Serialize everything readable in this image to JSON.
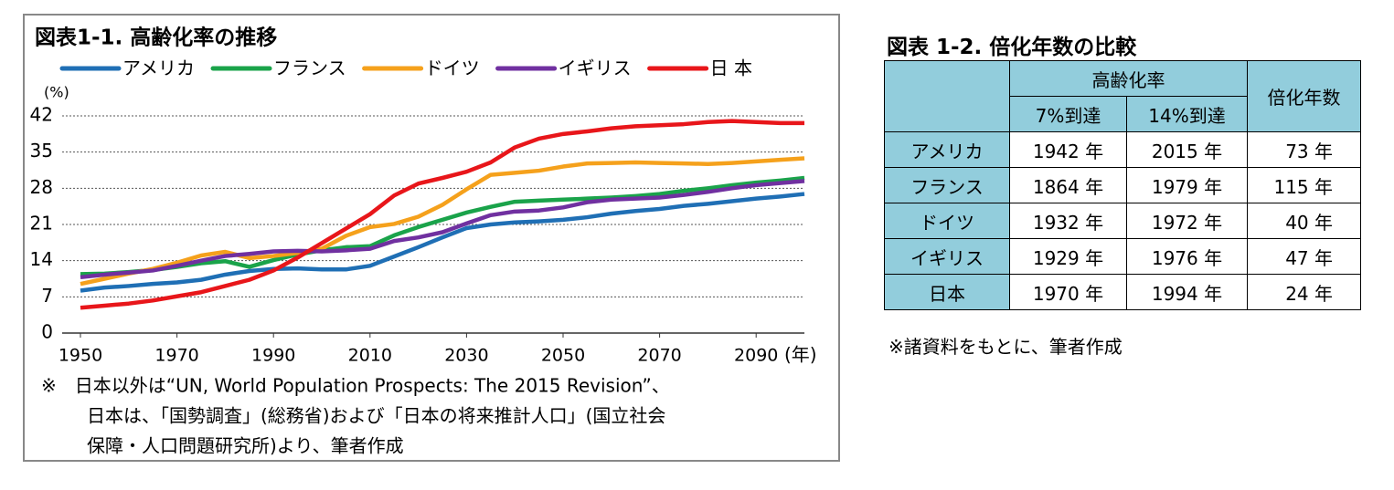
{
  "chart_data": {
    "type": "line",
    "title": "図表1-1. 高齢化率の推移",
    "y_label": "(%)",
    "x_label": "(年)",
    "x": [
      1950,
      1955,
      1960,
      1965,
      1970,
      1975,
      1980,
      1985,
      1990,
      1995,
      2000,
      2005,
      2010,
      2015,
      2020,
      2025,
      2030,
      2035,
      2040,
      2045,
      2050,
      2055,
      2060,
      2065,
      2070,
      2075,
      2080,
      2085,
      2090,
      2095,
      2100
    ],
    "series": [
      {
        "name": "アメリカ",
        "color": "#1f6fb5",
        "values": [
          8.2,
          8.8,
          9.1,
          9.5,
          9.8,
          10.3,
          11.3,
          12.0,
          12.4,
          12.5,
          12.3,
          12.3,
          13.0,
          14.8,
          16.6,
          18.5,
          20.3,
          21.0,
          21.4,
          21.6,
          21.9,
          22.4,
          23.1,
          23.6,
          24.0,
          24.6,
          25.0,
          25.5,
          26.0,
          26.4,
          26.9
        ]
      },
      {
        "name": "フランス",
        "color": "#1aa34a",
        "values": [
          11.4,
          11.5,
          11.8,
          12.2,
          12.8,
          13.5,
          13.9,
          12.8,
          14.1,
          15.2,
          16.0,
          16.6,
          16.8,
          18.9,
          20.5,
          21.9,
          23.3,
          24.4,
          25.4,
          25.6,
          25.8,
          26.0,
          26.2,
          26.5,
          26.9,
          27.5,
          28.0,
          28.6,
          29.1,
          29.5,
          30.0
        ]
      },
      {
        "name": "ドイツ",
        "color": "#f5a11c",
        "values": [
          9.5,
          10.5,
          11.5,
          12.4,
          13.6,
          15.0,
          15.7,
          14.5,
          14.9,
          15.5,
          16.3,
          18.8,
          20.5,
          21.1,
          22.5,
          24.8,
          27.8,
          30.6,
          31.0,
          31.4,
          32.2,
          32.8,
          32.9,
          33.0,
          32.9,
          32.8,
          32.7,
          32.9,
          33.2,
          33.5,
          33.8
        ]
      },
      {
        "name": "イギリス",
        "color": "#7030a0",
        "values": [
          10.8,
          11.3,
          11.7,
          12.1,
          13.0,
          14.0,
          14.9,
          15.3,
          15.8,
          15.9,
          15.8,
          16.0,
          16.3,
          17.8,
          18.5,
          19.5,
          21.2,
          22.8,
          23.5,
          23.7,
          24.3,
          25.3,
          25.8,
          26.0,
          26.2,
          26.7,
          27.3,
          28.0,
          28.6,
          29.0,
          29.4
        ]
      },
      {
        "name": "日 本",
        "color": "#e8161a",
        "values": [
          4.9,
          5.3,
          5.7,
          6.3,
          7.1,
          7.9,
          9.1,
          10.3,
          12.1,
          14.6,
          17.4,
          20.2,
          23.0,
          26.6,
          28.9,
          30.0,
          31.2,
          33.0,
          35.9,
          37.6,
          38.5,
          39.0,
          39.6,
          40.0,
          40.2,
          40.4,
          40.8,
          41.0,
          40.8,
          40.6,
          40.6
        ]
      }
    ],
    "xlim": [
      1950,
      2100
    ],
    "xticks": [
      1950,
      1970,
      1990,
      2010,
      2030,
      2050,
      2070,
      2090
    ],
    "ylim": [
      0,
      42
    ],
    "yticks": [
      0,
      7,
      14,
      21,
      28,
      35,
      42
    ],
    "grid": true,
    "notes": [
      "※　日本以外は“UN, World Population Prospects: The 2015 Revision”、",
      "日本は、「国勢調査」(総務省)および「日本の将来推計人口」(国立社会",
      "保障・人口問題研究所)より、筆者作成"
    ]
  },
  "table": {
    "title": "図表 1-2. 倍化年数の比較",
    "header": {
      "group": "高齢化率",
      "col1": "7%到達",
      "col2": "14%到達",
      "col3": "倍化年数"
    },
    "rows": [
      [
        "アメリカ",
        "1942 年",
        "2015 年",
        "73 年"
      ],
      [
        "フランス",
        "1864 年",
        "1979 年",
        "115 年"
      ],
      [
        "ドイツ",
        "1932 年",
        "1972 年",
        "40 年"
      ],
      [
        "イギリス",
        "1929 年",
        "1976 年",
        "47 年"
      ],
      [
        "日本",
        "1970 年",
        "1994 年",
        "24 年"
      ]
    ],
    "note": "※諸資料をもとに、筆者作成"
  }
}
